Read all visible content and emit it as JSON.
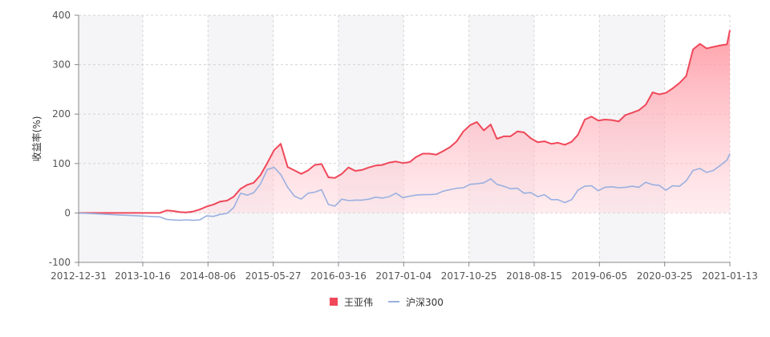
{
  "chart_data": {
    "type": "area",
    "title": "",
    "xlabel": "",
    "ylabel": "收益率(%)",
    "ylim": [
      -100,
      400
    ],
    "yticks": [
      "-100",
      "0",
      "100",
      "200",
      "300",
      "400"
    ],
    "xticks": [
      "2012-12-31",
      "2013-10-16",
      "2014-08-06",
      "2015-05-27",
      "2016-03-16",
      "2017-01-04",
      "2017-10-25",
      "2018-08-15",
      "2019-06-05",
      "2020-03-25",
      "2021-01-13"
    ],
    "grid": true,
    "legend_position": "bottom-center",
    "x_start": "2012-12-31",
    "x_end": "2021-01-13",
    "series": [
      {
        "name": "王亚伟",
        "color": "#f0485a",
        "fill": "gradient",
        "points": [
          [
            "2012-12-31",
            0
          ],
          [
            "2013-03-31",
            0
          ],
          [
            "2013-06-30",
            0
          ],
          [
            "2013-09-30",
            0
          ],
          [
            "2013-12-31",
            0
          ],
          [
            "2014-01-31",
            5
          ],
          [
            "2014-02-28",
            4
          ],
          [
            "2014-03-31",
            2
          ],
          [
            "2014-04-30",
            1
          ],
          [
            "2014-05-31",
            3
          ],
          [
            "2014-06-30",
            7
          ],
          [
            "2014-07-31",
            13
          ],
          [
            "2014-08-31",
            17
          ],
          [
            "2014-09-30",
            23
          ],
          [
            "2014-10-31",
            25
          ],
          [
            "2014-11-30",
            33
          ],
          [
            "2014-12-31",
            49
          ],
          [
            "2015-01-31",
            57
          ],
          [
            "2015-02-28",
            61
          ],
          [
            "2015-03-31",
            77
          ],
          [
            "2015-04-30",
            101
          ],
          [
            "2015-05-31",
            127
          ],
          [
            "2015-06-30",
            140
          ],
          [
            "2015-07-31",
            93
          ],
          [
            "2015-08-31",
            86
          ],
          [
            "2015-09-30",
            79
          ],
          [
            "2015-10-31",
            86
          ],
          [
            "2015-11-30",
            97
          ],
          [
            "2015-12-31",
            99
          ],
          [
            "2016-01-31",
            72
          ],
          [
            "2016-02-29",
            71
          ],
          [
            "2016-03-31",
            79
          ],
          [
            "2016-04-30",
            92
          ],
          [
            "2016-05-31",
            85
          ],
          [
            "2016-06-30",
            87
          ],
          [
            "2016-07-31",
            92
          ],
          [
            "2016-08-31",
            96
          ],
          [
            "2016-09-30",
            97
          ],
          [
            "2016-10-31",
            102
          ],
          [
            "2016-11-30",
            104
          ],
          [
            "2016-12-31",
            101
          ],
          [
            "2017-01-31",
            103
          ],
          [
            "2017-02-28",
            113
          ],
          [
            "2017-03-31",
            120
          ],
          [
            "2017-04-30",
            120
          ],
          [
            "2017-05-31",
            118
          ],
          [
            "2017-06-30",
            125
          ],
          [
            "2017-07-31",
            133
          ],
          [
            "2017-08-31",
            145
          ],
          [
            "2017-09-30",
            165
          ],
          [
            "2017-10-31",
            178
          ],
          [
            "2017-11-30",
            184
          ],
          [
            "2017-12-31",
            167
          ],
          [
            "2018-01-31",
            179
          ],
          [
            "2018-02-28",
            150
          ],
          [
            "2018-03-31",
            155
          ],
          [
            "2018-04-30",
            155
          ],
          [
            "2018-05-31",
            165
          ],
          [
            "2018-06-30",
            163
          ],
          [
            "2018-07-31",
            151
          ],
          [
            "2018-08-31",
            143
          ],
          [
            "2018-09-30",
            145
          ],
          [
            "2018-10-31",
            140
          ],
          [
            "2018-11-30",
            142
          ],
          [
            "2018-12-31",
            138
          ],
          [
            "2019-01-31",
            144
          ],
          [
            "2019-02-28",
            158
          ],
          [
            "2019-03-31",
            189
          ],
          [
            "2019-04-30",
            195
          ],
          [
            "2019-05-31",
            187
          ],
          [
            "2019-06-30",
            189
          ],
          [
            "2019-07-31",
            188
          ],
          [
            "2019-08-31",
            185
          ],
          [
            "2019-09-30",
            198
          ],
          [
            "2019-10-31",
            203
          ],
          [
            "2019-11-30",
            208
          ],
          [
            "2019-12-31",
            219
          ],
          [
            "2020-01-31",
            244
          ],
          [
            "2020-02-29",
            240
          ],
          [
            "2020-03-31",
            243
          ],
          [
            "2020-04-30",
            252
          ],
          [
            "2020-05-31",
            263
          ],
          [
            "2020-06-30",
            277
          ],
          [
            "2020-07-31",
            331
          ],
          [
            "2020-08-31",
            342
          ],
          [
            "2020-09-30",
            333
          ],
          [
            "2020-10-31",
            336
          ],
          [
            "2020-11-30",
            339
          ],
          [
            "2020-12-31",
            341
          ],
          [
            "2021-01-13",
            370
          ]
        ]
      },
      {
        "name": "沪深300",
        "color": "#9ab0e0",
        "fill": "none",
        "points": [
          [
            "2012-12-31",
            0
          ],
          [
            "2013-03-31",
            -2
          ],
          [
            "2013-06-30",
            -4
          ],
          [
            "2013-09-30",
            -6
          ],
          [
            "2013-12-31",
            -8
          ],
          [
            "2014-01-31",
            -13
          ],
          [
            "2014-02-28",
            -14
          ],
          [
            "2014-03-31",
            -15
          ],
          [
            "2014-04-30",
            -14
          ],
          [
            "2014-05-31",
            -15
          ],
          [
            "2014-06-30",
            -14
          ],
          [
            "2014-07-31",
            -6
          ],
          [
            "2014-08-31",
            -7
          ],
          [
            "2014-09-30",
            -3
          ],
          [
            "2014-10-31",
            -1
          ],
          [
            "2014-11-30",
            11
          ],
          [
            "2014-12-31",
            40
          ],
          [
            "2015-01-31",
            36
          ],
          [
            "2015-02-28",
            41
          ],
          [
            "2015-03-31",
            59
          ],
          [
            "2015-04-30",
            88
          ],
          [
            "2015-05-31",
            92
          ],
          [
            "2015-06-30",
            78
          ],
          [
            "2015-07-31",
            52
          ],
          [
            "2015-08-31",
            34
          ],
          [
            "2015-09-30",
            28
          ],
          [
            "2015-10-31",
            40
          ],
          [
            "2015-11-30",
            42
          ],
          [
            "2015-12-31",
            47
          ],
          [
            "2016-01-31",
            17
          ],
          [
            "2016-02-29",
            14
          ],
          [
            "2016-03-31",
            28
          ],
          [
            "2016-04-30",
            25
          ],
          [
            "2016-05-31",
            26
          ],
          [
            "2016-06-30",
            26
          ],
          [
            "2016-07-31",
            28
          ],
          [
            "2016-08-31",
            32
          ],
          [
            "2016-09-30",
            30
          ],
          [
            "2016-10-31",
            33
          ],
          [
            "2016-11-30",
            40
          ],
          [
            "2016-12-31",
            31
          ],
          [
            "2017-01-31",
            34
          ],
          [
            "2017-02-28",
            36
          ],
          [
            "2017-03-31",
            37
          ],
          [
            "2017-04-30",
            37
          ],
          [
            "2017-05-31",
            38
          ],
          [
            "2017-06-30",
            44
          ],
          [
            "2017-07-31",
            47
          ],
          [
            "2017-08-31",
            50
          ],
          [
            "2017-09-30",
            51
          ],
          [
            "2017-10-31",
            58
          ],
          [
            "2017-11-30",
            59
          ],
          [
            "2017-12-31",
            61
          ],
          [
            "2018-01-31",
            69
          ],
          [
            "2018-02-28",
            58
          ],
          [
            "2018-03-31",
            54
          ],
          [
            "2018-04-30",
            49
          ],
          [
            "2018-05-31",
            50
          ],
          [
            "2018-06-30",
            40
          ],
          [
            "2018-07-31",
            41
          ],
          [
            "2018-08-31",
            33
          ],
          [
            "2018-09-30",
            37
          ],
          [
            "2018-10-31",
            27
          ],
          [
            "2018-11-30",
            27
          ],
          [
            "2018-12-31",
            21
          ],
          [
            "2019-01-31",
            27
          ],
          [
            "2019-02-28",
            46
          ],
          [
            "2019-03-31",
            54
          ],
          [
            "2019-04-30",
            55
          ],
          [
            "2019-05-31",
            45
          ],
          [
            "2019-06-30",
            52
          ],
          [
            "2019-07-31",
            53
          ],
          [
            "2019-08-31",
            51
          ],
          [
            "2019-09-30",
            52
          ],
          [
            "2019-10-31",
            54
          ],
          [
            "2019-11-30",
            52
          ],
          [
            "2019-12-31",
            62
          ],
          [
            "2020-01-31",
            57
          ],
          [
            "2020-02-29",
            56
          ],
          [
            "2020-03-31",
            46
          ],
          [
            "2020-04-30",
            55
          ],
          [
            "2020-05-31",
            54
          ],
          [
            "2020-06-30",
            65
          ],
          [
            "2020-07-31",
            86
          ],
          [
            "2020-08-31",
            90
          ],
          [
            "2020-09-30",
            82
          ],
          [
            "2020-10-31",
            86
          ],
          [
            "2020-11-30",
            96
          ],
          [
            "2020-12-31",
            107
          ],
          [
            "2021-01-13",
            120
          ]
        ]
      }
    ]
  }
}
